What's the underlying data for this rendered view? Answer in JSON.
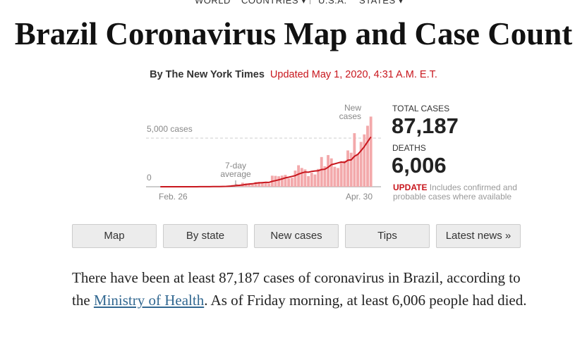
{
  "nav": [
    "WORLD",
    "COUNTRIES ▾",
    "U.S.A.",
    "STATES ▾"
  ],
  "title": "Brazil Coronavirus Map and Case Count",
  "byline": "By The New York Times",
  "updated": "Updated May 1, 2020, 4:31 A.M. E.T.",
  "chart_data": {
    "type": "bar",
    "categories": [
      "Feb. 26",
      null,
      null,
      null,
      null,
      null,
      null,
      null,
      null,
      null,
      null,
      null,
      null,
      null,
      null,
      null,
      null,
      null,
      null,
      null,
      null,
      null,
      null,
      null,
      null,
      null,
      null,
      null,
      null,
      null,
      null,
      null,
      null,
      null,
      null,
      null,
      null,
      null,
      null,
      null,
      null,
      null,
      null,
      null,
      null,
      null,
      null,
      null,
      null,
      null,
      null,
      null,
      null,
      null,
      null,
      null,
      null,
      null,
      null,
      null,
      null,
      null,
      null,
      null,
      "Apr. 30"
    ],
    "series": [
      {
        "name": "New cases",
        "color": "#f3a9ab",
        "values": [
          1,
          0,
          1,
          0,
          0,
          0,
          0,
          1,
          0,
          5,
          5,
          6,
          5,
          5,
          18,
          18,
          25,
          21,
          23,
          79,
          57,
          137,
          193,
          283,
          224,
          418,
          345,
          310,
          232,
          482,
          502,
          487,
          352,
          323,
          1138,
          1119,
          1074,
          1146,
          1222,
          852,
          926,
          1661,
          2210,
          1930,
          1781,
          1089,
          1442,
          1261,
          1832,
          3058,
          2105,
          3257,
          2917,
          2055,
          1927,
          2498,
          2678,
          3735,
          3503,
          5514,
          3379,
          4613,
          5385,
          6276,
          7218
        ]
      },
      {
        "name": "7-day average",
        "color": "#c8161d",
        "values": [
          0,
          0,
          0,
          0,
          0,
          0,
          0,
          0,
          1,
          2,
          2,
          3,
          4,
          4,
          6,
          9,
          12,
          15,
          16,
          27,
          34,
          51,
          78,
          116,
          143,
          184,
          237,
          281,
          305,
          363,
          401,
          423,
          447,
          442,
          559,
          629,
          714,
          806,
          911,
          982,
          1068,
          1143,
          1299,
          1421,
          1512,
          1493,
          1577,
          1625,
          1649,
          1770,
          1795,
          2006,
          2267,
          2355,
          2450,
          2545,
          2491,
          2724,
          2759,
          3130,
          3319,
          3703,
          4115,
          4629,
          5127
        ]
      }
    ],
    "annotations": [
      [
        "New",
        "cases"
      ],
      [
        "7-day",
        "average"
      ]
    ],
    "ylim": [
      0,
      8700
    ],
    "yticks": [
      0,
      {
        "value": 5000,
        "label": "5,000 cases"
      }
    ],
    "grid": true
  },
  "stats": {
    "cases_label": "TOTAL CASES",
    "cases": "87,187",
    "deaths_label": "DEATHS",
    "deaths": "6,006",
    "update_label": "UPDATE",
    "update_note": "Includes confirmed and probable cases where available"
  },
  "buttons": [
    "Map",
    "By state",
    "New cases",
    "Tips",
    "Latest news »"
  ],
  "paragraph": [
    "There have been at least 87,187 cases of coronavirus in Brazil, according to the ",
    "Ministry of Health",
    ". As of Friday morning, at least 6,006 people had died."
  ]
}
